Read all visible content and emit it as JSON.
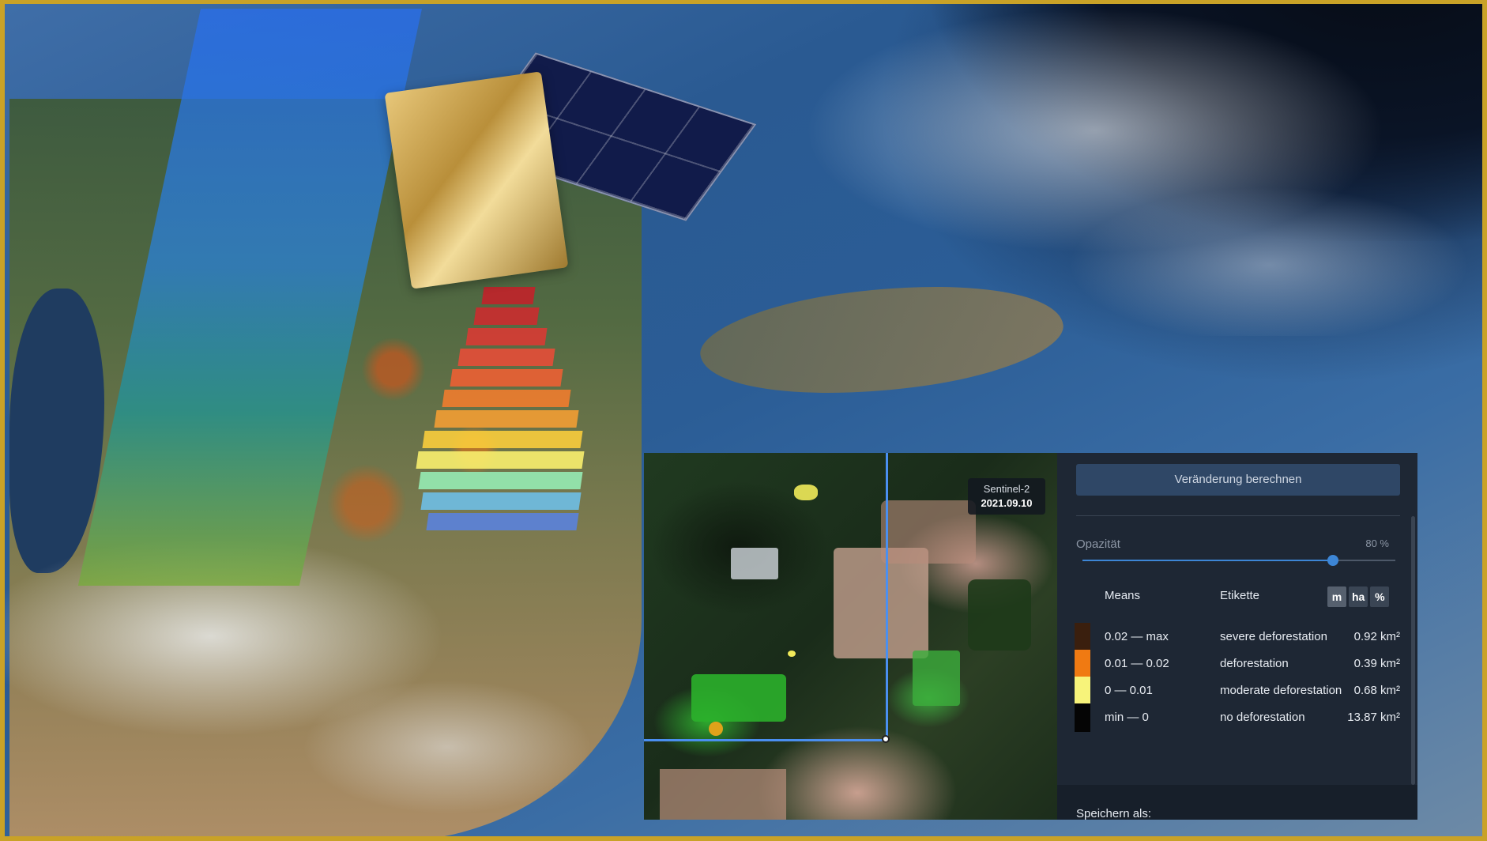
{
  "map": {
    "badge": {
      "sensor": "Sentinel-2",
      "date": "2021.09.10"
    }
  },
  "panel": {
    "calculate_button": "Veränderung berechnen",
    "opacity": {
      "label": "Opazität",
      "value_text": "80 %",
      "value": 0.8
    },
    "table": {
      "header_means": "Means",
      "header_label": "Etikette",
      "units": [
        {
          "label": "m",
          "active": true
        },
        {
          "label": "ha",
          "active": false
        },
        {
          "label": "%",
          "active": false
        }
      ],
      "rows": [
        {
          "mean": "0.02 — max",
          "label": "severe deforestation",
          "area": "0.92 km²",
          "color": "#3a1f0e"
        },
        {
          "mean": "0.01 — 0.02",
          "label": "deforestation",
          "area": "0.39 km²",
          "color": "#f07a12"
        },
        {
          "mean": "0 — 0.01",
          "label": "moderate deforestation",
          "area": "0.68 km²",
          "color": "#f7f37a"
        },
        {
          "mean": "min — 0",
          "label": "no deforestation",
          "area": "13.87 km²",
          "color": "#050505"
        }
      ]
    },
    "save_label": "Speichern als:"
  },
  "colors": {
    "frame_border": "#c9a227",
    "panel_bg": "#1e2734",
    "accent": "#3d86d6",
    "map_line": "#4a8ff0"
  }
}
